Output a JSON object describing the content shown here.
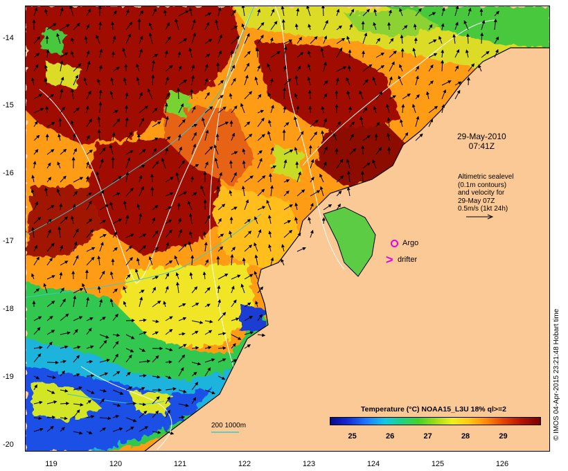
{
  "map": {
    "projection_extent": {
      "lon_min": 118.6,
      "lon_max": 126.7,
      "lat_min": -20.1,
      "lat_max": -13.6
    },
    "lat_ticks": [
      "-14",
      "-15",
      "-16",
      "-17",
      "-18",
      "-19",
      "-20"
    ],
    "lon_ticks": [
      "119",
      "120",
      "121",
      "122",
      "123",
      "124",
      "125",
      "126"
    ],
    "land_color": "#fbc995"
  },
  "annotations": {
    "date": "29-May-2010",
    "time": "07:41Z",
    "altimetry_lines": [
      "Altimetric sealevel",
      "(0.1m contours)",
      "and velocity for",
      "29-May 07Z",
      "0.5m/s (1kt 24h)"
    ],
    "argo_label": "Argo",
    "drifter_label": "drifter",
    "drifter_symbol": ">",
    "scale_label": "200  1000m"
  },
  "legend": {
    "title": "Temperature (°C) NOAA15_L3U 18% ql>=2",
    "ticks": [
      "25",
      "26",
      "27",
      "28",
      "29"
    ],
    "range": [
      24.4,
      30.0
    ]
  },
  "credit": "© IMOS 04-Apr-2015 23:21:48 Hobart time"
}
